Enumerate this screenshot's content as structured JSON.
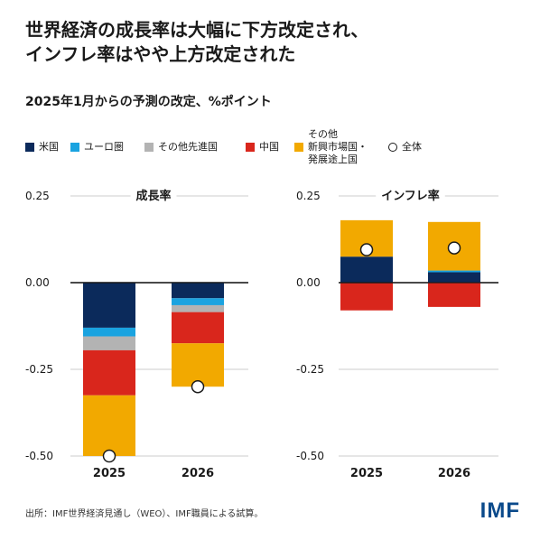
{
  "title_line1": "世界経済の成長率は大幅に下方改定され、",
  "title_line2": "インフレ率はやや上方改定された",
  "subtitle": "2025年1月からの予測の改定、%ポイント",
  "colors": {
    "us": "#0b2a5b",
    "euro": "#1aa3e0",
    "other_adv": "#b3b3b3",
    "china": "#d9261c",
    "emde": "#f2a900",
    "world": "#ffffff"
  },
  "legend": [
    {
      "key": "us",
      "label": "米国"
    },
    {
      "key": "euro",
      "label": "ユーロ圏"
    },
    {
      "key": "other_adv",
      "label": "その他先進国"
    },
    {
      "key": "china",
      "label": "中国"
    },
    {
      "key": "emde",
      "label": "その他\n新興市場国・\n発展途上国"
    },
    {
      "key": "world",
      "label": "全体"
    }
  ],
  "chart_data": [
    {
      "type": "bar",
      "title": "成長率",
      "categories": [
        "2025",
        "2026"
      ],
      "ylim": [
        -0.5,
        0.25
      ],
      "yticks": [
        "0.25",
        "0.00",
        "-0.25",
        "-0.50"
      ],
      "series": [
        {
          "name": "米国",
          "key": "us",
          "values": [
            -0.13,
            -0.045
          ]
        },
        {
          "name": "ユーロ圏",
          "key": "euro",
          "values": [
            -0.025,
            -0.02
          ]
        },
        {
          "name": "その他先進国",
          "key": "other_adv",
          "values": [
            -0.04,
            -0.02
          ]
        },
        {
          "name": "中国",
          "key": "china",
          "values": [
            -0.13,
            -0.09
          ]
        },
        {
          "name": "その他新興市場国・発展途上国",
          "key": "emde",
          "values": [
            -0.175,
            -0.125
          ]
        }
      ],
      "total": {
        "name": "全体",
        "values": [
          -0.5,
          -0.3
        ]
      }
    },
    {
      "type": "bar",
      "title": "インフレ率",
      "categories": [
        "2025",
        "2026"
      ],
      "ylim": [
        -0.5,
        0.25
      ],
      "yticks": [
        "0.25",
        "0.00",
        "-0.25",
        "-0.50"
      ],
      "series": [
        {
          "name": "米国",
          "key": "us",
          "values": [
            0.075,
            0.03
          ]
        },
        {
          "name": "ユーロ圏",
          "key": "euro",
          "values": [
            0.0,
            0.005
          ]
        },
        {
          "name": "その他先進国",
          "key": "other_adv",
          "values": [
            0.0,
            0.0
          ]
        },
        {
          "name": "中国",
          "key": "china",
          "values": [
            -0.08,
            -0.07
          ]
        },
        {
          "name": "その他新興市場国・発展途上国",
          "key": "emde",
          "values": [
            0.105,
            0.14
          ]
        }
      ],
      "total": {
        "name": "全体",
        "values": [
          0.095,
          0.1
        ]
      }
    }
  ],
  "source": "出所：IMF世界経済見通し（WEO）、IMF職員による試算。",
  "logo": "IMF"
}
